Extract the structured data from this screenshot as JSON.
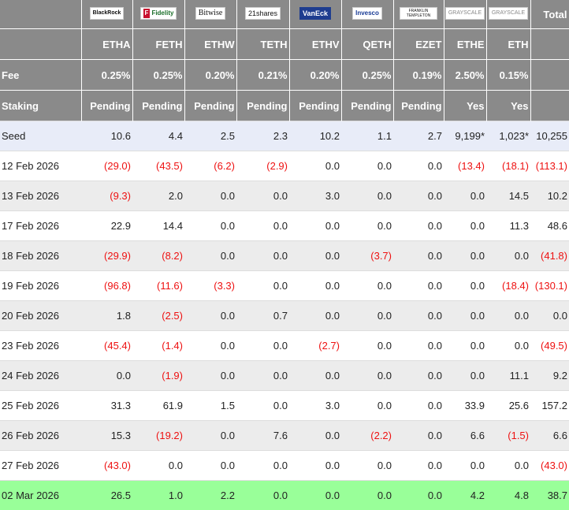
{
  "brands": {
    "blackrock": "BlackRock",
    "fidelity_mark": "F",
    "fidelity": "Fidelity",
    "bitwise": "Bitwise",
    "shares21": "21shares",
    "vaneck": "VanEck",
    "invesco": "Invesco",
    "franklin": "FRANKLIN TEMPLETON",
    "grayscale_ethe": "GRAYSCALE",
    "grayscale_eth": "GRAYSCALE"
  },
  "header": {
    "total": "Total"
  },
  "tickers": [
    "ETHA",
    "FETH",
    "ETHW",
    "TETH",
    "ETHV",
    "QETH",
    "EZET",
    "ETHE",
    "ETH"
  ],
  "fee": {
    "label": "Fee",
    "values": [
      "0.25%",
      "0.25%",
      "0.20%",
      "0.21%",
      "0.20%",
      "0.25%",
      "0.19%",
      "2.50%",
      "0.15%"
    ]
  },
  "staking": {
    "label": "Staking",
    "values": [
      "Pending",
      "Pending",
      "Pending",
      "Pending",
      "Pending",
      "Pending",
      "Pending",
      "Yes",
      "Yes"
    ]
  },
  "rows": [
    {
      "label": "Seed",
      "values": [
        "10.6",
        "4.4",
        "2.5",
        "2.3",
        "10.2",
        "1.1",
        "2.7",
        "9,199*",
        "1,023*",
        "10,255"
      ]
    },
    {
      "label": "12 Feb 2026",
      "values": [
        "(29.0)",
        "(43.5)",
        "(6.2)",
        "(2.9)",
        "0.0",
        "0.0",
        "0.0",
        "(13.4)",
        "(18.1)",
        "(113.1)"
      ]
    },
    {
      "label": "13 Feb 2026",
      "values": [
        "(9.3)",
        "2.0",
        "0.0",
        "0.0",
        "3.0",
        "0.0",
        "0.0",
        "0.0",
        "14.5",
        "10.2"
      ]
    },
    {
      "label": "17 Feb 2026",
      "values": [
        "22.9",
        "14.4",
        "0.0",
        "0.0",
        "0.0",
        "0.0",
        "0.0",
        "0.0",
        "11.3",
        "48.6"
      ]
    },
    {
      "label": "18 Feb 2026",
      "values": [
        "(29.9)",
        "(8.2)",
        "0.0",
        "0.0",
        "0.0",
        "(3.7)",
        "0.0",
        "0.0",
        "0.0",
        "(41.8)"
      ]
    },
    {
      "label": "19 Feb 2026",
      "values": [
        "(96.8)",
        "(11.6)",
        "(3.3)",
        "0.0",
        "0.0",
        "0.0",
        "0.0",
        "0.0",
        "(18.4)",
        "(130.1)"
      ]
    },
    {
      "label": "20 Feb 2026",
      "values": [
        "1.8",
        "(2.5)",
        "0.0",
        "0.7",
        "0.0",
        "0.0",
        "0.0",
        "0.0",
        "0.0",
        "0.0"
      ]
    },
    {
      "label": "23 Feb 2026",
      "values": [
        "(45.4)",
        "(1.4)",
        "0.0",
        "0.0",
        "(2.7)",
        "0.0",
        "0.0",
        "0.0",
        "0.0",
        "(49.5)"
      ]
    },
    {
      "label": "24 Feb 2026",
      "values": [
        "0.0",
        "(1.9)",
        "0.0",
        "0.0",
        "0.0",
        "0.0",
        "0.0",
        "0.0",
        "11.1",
        "9.2"
      ]
    },
    {
      "label": "25 Feb 2026",
      "values": [
        "31.3",
        "61.9",
        "1.5",
        "0.0",
        "3.0",
        "0.0",
        "0.0",
        "33.9",
        "25.6",
        "157.2"
      ]
    },
    {
      "label": "26 Feb 2026",
      "values": [
        "15.3",
        "(19.2)",
        "0.0",
        "7.6",
        "0.0",
        "(2.2)",
        "0.0",
        "6.6",
        "(1.5)",
        "6.6"
      ]
    },
    {
      "label": "27 Feb 2026",
      "values": [
        "(43.0)",
        "0.0",
        "0.0",
        "0.0",
        "0.0",
        "0.0",
        "0.0",
        "0.0",
        "0.0",
        "(43.0)"
      ]
    },
    {
      "label": "02 Mar 2026",
      "values": [
        "26.5",
        "1.0",
        "2.2",
        "0.0",
        "0.0",
        "0.0",
        "0.0",
        "4.2",
        "4.8",
        "38.7"
      ]
    }
  ],
  "colors": {
    "header_bg": "#8a8a8a",
    "negative": "#ee1111",
    "seed_bg": "#e8ecf8",
    "alt_bg": "#ececec",
    "highlight_bg": "#99ff99"
  }
}
